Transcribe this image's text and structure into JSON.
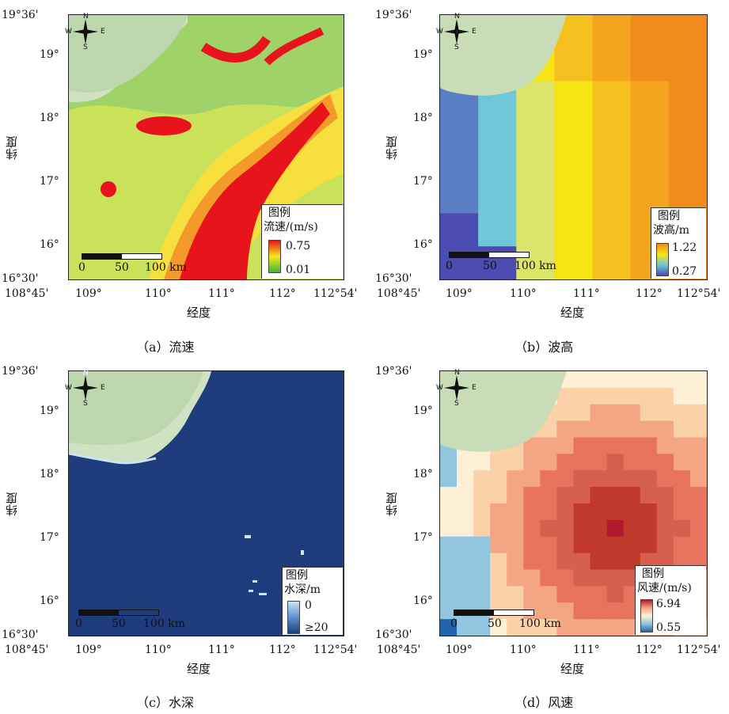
{
  "axes": {
    "x_ticks": [
      "108°45'",
      "109°",
      "110°",
      "111°",
      "112°",
      "112°54'"
    ],
    "y_ticks": [
      "19°36'",
      "19°",
      "18°",
      "17°",
      "16°",
      "16°30'"
    ],
    "xlabel": "经度",
    "ylabel": "纬度"
  },
  "compass": {
    "n": "N",
    "s": "S",
    "e": "E",
    "w": "W"
  },
  "scalebar": {
    "zero": "0",
    "mid": "50",
    "end": "100 km"
  },
  "legend_title": "图例",
  "panels": [
    {
      "id": "a",
      "caption": "（a）流速",
      "legend_unit": "流速/(m/s)",
      "legend_max": "0.75",
      "legend_min": "0.01",
      "colors": [
        "#e8141c",
        "#f7e81c",
        "#3fb43c"
      ]
    },
    {
      "id": "b",
      "caption": "（b）波高",
      "legend_unit": "波高/m",
      "legend_max": "1.22",
      "legend_min": "0.27",
      "colors": [
        "#f08c1c",
        "#f7e414",
        "#6fc7d9",
        "#4a4cb0"
      ]
    },
    {
      "id": "c",
      "caption": "（c）水深",
      "legend_unit": "水深/m",
      "legend_max": "0",
      "legend_min": "≥20",
      "colors": [
        "#c8e6f4",
        "#1f3d7c"
      ]
    },
    {
      "id": "d",
      "caption": "（d）风速",
      "legend_unit": "风速/(m/s)",
      "legend_max": "6.94",
      "legend_min": "0.55",
      "colors": [
        "#b2182b",
        "#f4a582",
        "#fdf0d5",
        "#2166ac"
      ]
    }
  ]
}
